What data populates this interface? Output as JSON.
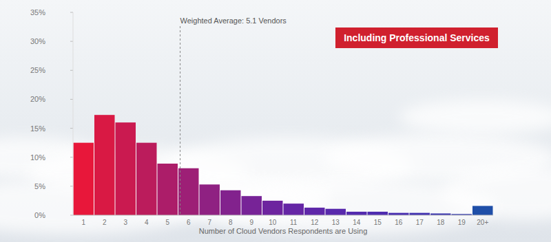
{
  "chart_data": {
    "type": "bar",
    "categories": [
      "1",
      "2",
      "3",
      "4",
      "5",
      "6",
      "7",
      "8",
      "9",
      "10",
      "11",
      "12",
      "13",
      "14",
      "15",
      "16",
      "17",
      "18",
      "19",
      "20+"
    ],
    "values": [
      12.5,
      17.3,
      16,
      12.5,
      8.9,
      8.1,
      5.3,
      4.3,
      3.3,
      2.5,
      2.0,
      1.3,
      1.1,
      0.6,
      0.6,
      0.4,
      0.4,
      0.3,
      0.2,
      1.6
    ],
    "colors": [
      "#e8173a",
      "#d91944",
      "#ca1a50",
      "#bb1c5c",
      "#ac1d69",
      "#9d1f76",
      "#8f2182",
      "#82228d",
      "#772397",
      "#6d249f",
      "#6526a5",
      "#5e27a9",
      "#5829ac",
      "#532aae",
      "#4e2caf",
      "#482fb0",
      "#4233b0",
      "#3c38af",
      "#363ead",
      "#1f4fa8"
    ],
    "ylim": [
      0,
      35
    ],
    "yticks": [
      {
        "value": 0,
        "label": "0%"
      },
      {
        "value": 5,
        "label": "5%"
      },
      {
        "value": 10,
        "label": "10%"
      },
      {
        "value": 15,
        "label": "15%"
      },
      {
        "value": 20,
        "label": "20%"
      },
      {
        "value": 25,
        "label": "25%"
      },
      {
        "value": 30,
        "label": "30%"
      },
      {
        "value": 35,
        "label": "35%"
      }
    ],
    "grid": false,
    "x_label": "Number of Cloud Vendors Respondents are Using",
    "subtitle": "Including Professional Services",
    "annotations": [
      {
        "text": "Weighted Average: 5.1 Vendors",
        "x": 5.1
      }
    ]
  }
}
